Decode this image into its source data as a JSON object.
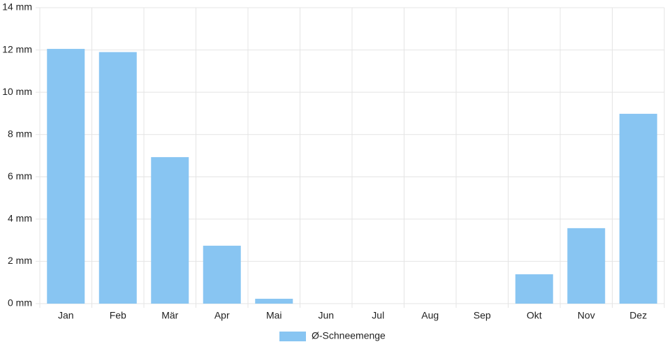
{
  "chart_data": {
    "type": "bar",
    "categories": [
      "Jan",
      "Feb",
      "Mär",
      "Apr",
      "Mai",
      "Jun",
      "Jul",
      "Aug",
      "Sep",
      "Okt",
      "Nov",
      "Dez"
    ],
    "series": [
      {
        "name": "Ø-Schneemenge",
        "color": "#88c5f2",
        "values": [
          12.05,
          11.9,
          6.93,
          2.74,
          0.23,
          0,
          0,
          0,
          0,
          1.39,
          3.57,
          8.98
        ]
      }
    ],
    "ylim": [
      0,
      14
    ],
    "yticks": [
      {
        "value": 0,
        "label": "0 mm"
      },
      {
        "value": 2,
        "label": "2 mm"
      },
      {
        "value": 4,
        "label": "4 mm"
      },
      {
        "value": 6,
        "label": "6 mm"
      },
      {
        "value": 8,
        "label": "8 mm"
      },
      {
        "value": 10,
        "label": "10 mm"
      },
      {
        "value": 12,
        "label": "12 mm"
      },
      {
        "value": 14,
        "label": "14 mm"
      }
    ],
    "grid": true,
    "legend": "bottom"
  }
}
